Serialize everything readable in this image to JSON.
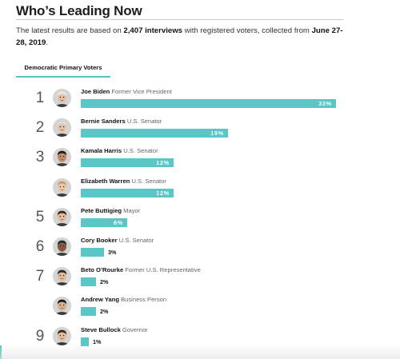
{
  "page": {
    "title": "Who’s Leading Now",
    "intro_pre": "The latest results are based on ",
    "intro_count": "2,407 interviews",
    "intro_mid": " with registered voters, collected from ",
    "intro_dates": "June 27-28, 2019",
    "intro_end": ".",
    "tab_label": "Democratic Primary Voters"
  },
  "colors": {
    "bar": "#5ac6c6",
    "accent": "#53c4c6"
  },
  "chart_data": {
    "type": "bar",
    "categories": [
      "Joe Biden",
      "Bernie Sanders",
      "Kamala Harris",
      "Elizabeth Warren",
      "Pete Buttigieg",
      "Cory Booker",
      "Beto O’Rourke",
      "Andrew Yang",
      "Steve Bullock"
    ],
    "values": [
      33,
      19,
      12,
      12,
      6,
      3,
      2,
      2,
      1
    ],
    "xlim": [
      0,
      33
    ],
    "candidates": [
      {
        "rank": "1",
        "name": "Joe Biden",
        "title": "Former Vice President",
        "value": 33,
        "label": "33%",
        "icon": "joe-biden-portrait"
      },
      {
        "rank": "2",
        "name": "Bernie Sanders",
        "title": "U.S. Senator",
        "value": 19,
        "label": "19%",
        "icon": "bernie-sanders-portrait"
      },
      {
        "rank": "3",
        "name": "Kamala Harris",
        "title": "U.S. Senator",
        "value": 12,
        "label": "12%",
        "icon": "kamala-harris-portrait"
      },
      {
        "rank": "",
        "name": "Elizabeth Warren",
        "title": "U.S. Senator",
        "value": 12,
        "label": "12%",
        "icon": "elizabeth-warren-portrait"
      },
      {
        "rank": "5",
        "name": "Pete Buttigieg",
        "title": "Mayor",
        "value": 6,
        "label": "6%",
        "icon": "pete-buttigieg-portrait"
      },
      {
        "rank": "6",
        "name": "Cory Booker",
        "title": "U.S. Senator",
        "value": 3,
        "label": "3%",
        "icon": "cory-booker-portrait"
      },
      {
        "rank": "7",
        "name": "Beto O’Rourke",
        "title": "Former U.S. Representative",
        "value": 2,
        "label": "2%",
        "icon": "beto-orourke-portrait"
      },
      {
        "rank": "",
        "name": "Andrew Yang",
        "title": "Business Person",
        "value": 2,
        "label": "2%",
        "icon": "andrew-yang-portrait"
      },
      {
        "rank": "9",
        "name": "Steve Bullock",
        "title": "Governor",
        "value": 1,
        "label": "1%",
        "icon": "steve-bullock-portrait"
      }
    ]
  }
}
